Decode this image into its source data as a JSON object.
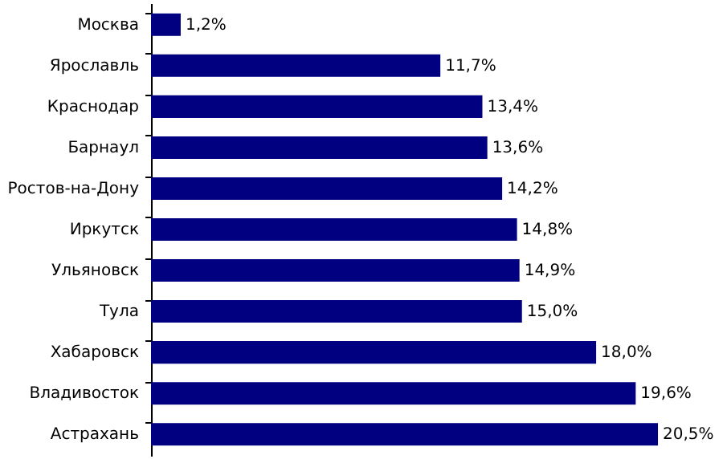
{
  "chart_data": {
    "type": "bar",
    "orientation": "horizontal",
    "categories": [
      "Москва",
      "Ярославль",
      "Краснодар",
      "Барнаул",
      "Ростов-на-Дону",
      "Иркутск",
      "Ульяновск",
      "Тула",
      "Хабаровск",
      "Владивосток",
      "Астрахань"
    ],
    "values": [
      1.2,
      11.7,
      13.4,
      13.6,
      14.2,
      14.8,
      14.9,
      15.0,
      18.0,
      19.6,
      20.5
    ],
    "value_labels": [
      "1,2%",
      "11,7%",
      "13,4%",
      "13,6%",
      "14,2%",
      "14,8%",
      "14,9%",
      "15,0%",
      "18,0%",
      "19,6%",
      "20,5%"
    ],
    "color": "#000080",
    "xlim": [
      0,
      23
    ],
    "tick_labels": "y"
  }
}
